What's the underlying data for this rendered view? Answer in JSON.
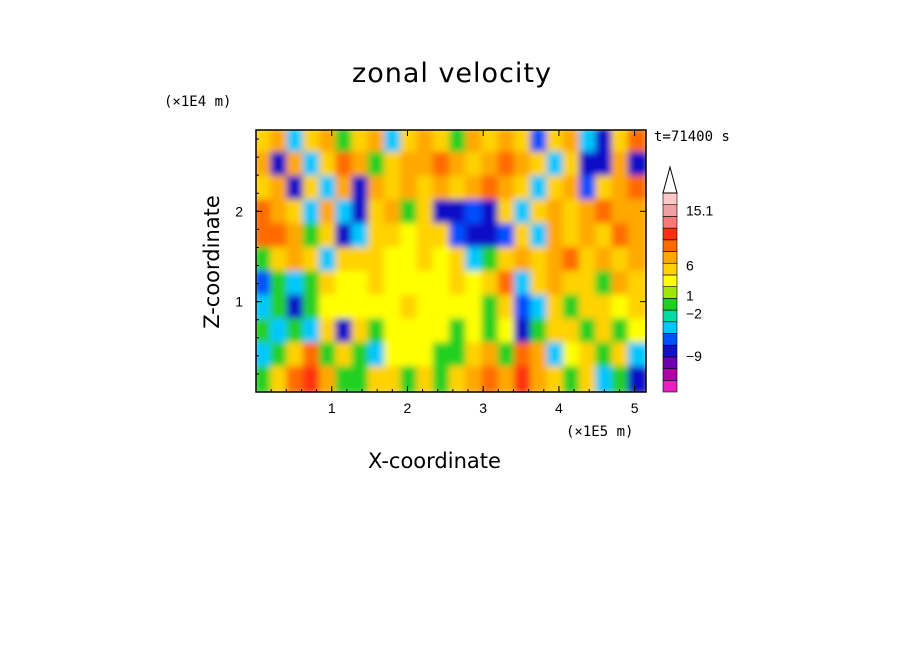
{
  "chart_data": {
    "type": "heatmap",
    "title": "zonal velocity",
    "xlabel": "X-coordinate",
    "ylabel": "Z-coordinate",
    "x_scale_label": "(×1E5 m)",
    "z_scale_label": "(×1E4 m)",
    "time_label": "t=71400 s",
    "xlim": [
      0,
      5.15
    ],
    "ylim": [
      0,
      2.9
    ],
    "x_ticks": [
      1,
      2,
      3,
      4,
      5
    ],
    "x_tick_labels": [
      "1",
      "2",
      "3",
      "4",
      "5"
    ],
    "y_ticks": [
      1,
      2
    ],
    "y_tick_labels": [
      "1",
      "2"
    ],
    "colorbar": {
      "labels": [
        {
          "text": "15.1",
          "value": 15.1
        },
        {
          "text": "6",
          "value": 6
        },
        {
          "text": "1",
          "value": 1
        },
        {
          "text": "−2",
          "value": -2
        },
        {
          "text": "−9",
          "value": -9
        }
      ],
      "colors": [
        "#e81fc0",
        "#b000a8",
        "#6e00b0",
        "#1010c8",
        "#0050ff",
        "#00c8ff",
        "#00dca0",
        "#20d020",
        "#a0e600",
        "#ffff00",
        "#ffd200",
        "#ffa800",
        "#ff6a00",
        "#ff3010",
        "#ff7878",
        "#f0a0a0",
        "#ffc8c8"
      ],
      "extend": "max"
    },
    "field": [
      [
        "#ffd200",
        "#ffa800",
        "#00c8ff",
        "#ffd200",
        "#ffa800",
        "#20d020",
        "#ffd200",
        "#ffa800",
        "#00c8ff",
        "#ffd200",
        "#ffa800",
        "#ffd200",
        "#20d020",
        "#ffa800",
        "#ffd200",
        "#ffa800",
        "#ffd200",
        "#0050ff",
        "#ffd200",
        "#ffa800",
        "#00c8ff",
        "#1010c8",
        "#ffd200",
        "#ff6a00"
      ],
      [
        "#ffa800",
        "#1010c8",
        "#ffa800",
        "#00c8ff",
        "#ffd200",
        "#ff6a00",
        "#ffa800",
        "#20d020",
        "#ffd200",
        "#ffa800",
        "#ffa800",
        "#ff6a00",
        "#ffa800",
        "#ffd200",
        "#ffa800",
        "#ff6a00",
        "#ffa800",
        "#ffd200",
        "#00c8ff",
        "#ffd200",
        "#1010c8",
        "#1010c8",
        "#ffa800",
        "#1010c8"
      ],
      [
        "#ffd200",
        "#ffa800",
        "#1010c8",
        "#ffd200",
        "#00c8ff",
        "#ffa800",
        "#1010c8",
        "#ffa800",
        "#ffd200",
        "#ffa800",
        "#ffd200",
        "#ffa800",
        "#ffd200",
        "#ffa800",
        "#ff6a00",
        "#ffa800",
        "#ffd200",
        "#00c8ff",
        "#ffd200",
        "#ffa800",
        "#0050ff",
        "#ffd200",
        "#ffa800",
        "#ff6a00"
      ],
      [
        "#ff6a00",
        "#ffa800",
        "#ffd200",
        "#00c8ff",
        "#ffa800",
        "#00c8ff",
        "#1010c8",
        "#ffd200",
        "#ffa800",
        "#20d020",
        "#ffd200",
        "#1010c8",
        "#1010c8",
        "#0050ff",
        "#1010c8",
        "#ffd200",
        "#00c8ff",
        "#ffd200",
        "#ffa800",
        "#ffd200",
        "#ffa800",
        "#ff6a00",
        "#ffa800",
        "#ffa800"
      ],
      [
        "#ff6a00",
        "#ff6a00",
        "#ffa800",
        "#20d020",
        "#ffd200",
        "#1010c8",
        "#00c8ff",
        "#ffd200",
        "#ffd200",
        "#ffff00",
        "#ffd200",
        "#ffd200",
        "#0050ff",
        "#1010c8",
        "#1010c8",
        "#0050ff",
        "#ffd200",
        "#00c8ff",
        "#ffa800",
        "#ffd200",
        "#ffa800",
        "#ffd200",
        "#ff6a00",
        "#ffa800"
      ],
      [
        "#20d020",
        "#ffd200",
        "#ffa800",
        "#ffd200",
        "#00c8ff",
        "#ffd200",
        "#ffd200",
        "#ffd200",
        "#ffff00",
        "#ffff00",
        "#ffd200",
        "#ffff00",
        "#ffd200",
        "#00c8ff",
        "#20d020",
        "#ffd200",
        "#ffa800",
        "#ffd200",
        "#ffa800",
        "#ff6a00",
        "#ffd200",
        "#ffa800",
        "#ffd200",
        "#ffa800"
      ],
      [
        "#0050ff",
        "#20d020",
        "#00c8ff",
        "#20d020",
        "#ffd200",
        "#ffff00",
        "#ffff00",
        "#ffd200",
        "#ffff00",
        "#ffff00",
        "#ffff00",
        "#ffff00",
        "#ffd200",
        "#ffff00",
        "#ffd200",
        "#ff6a00",
        "#00c8ff",
        "#ffd200",
        "#ffa800",
        "#ffd200",
        "#ffd200",
        "#20d020",
        "#ffa800",
        "#ffd200"
      ],
      [
        "#00c8ff",
        "#20d020",
        "#1010c8",
        "#20d020",
        "#ffff00",
        "#ffff00",
        "#ffff00",
        "#ffff00",
        "#ffff00",
        "#ffd200",
        "#ffff00",
        "#ffff00",
        "#ffff00",
        "#ffff00",
        "#20d020",
        "#ffd200",
        "#0050ff",
        "#00c8ff",
        "#ffd200",
        "#20d020",
        "#ffd200",
        "#ffd200",
        "#ffff00",
        "#ffd200"
      ],
      [
        "#20d020",
        "#00c8ff",
        "#20d020",
        "#00c8ff",
        "#ffd200",
        "#1010c8",
        "#ffd200",
        "#20d020",
        "#ffff00",
        "#ffff00",
        "#ffff00",
        "#ffff00",
        "#20d020",
        "#ffff00",
        "#20d020",
        "#ffff00",
        "#1010c8",
        "#20d020",
        "#ffd200",
        "#ffd200",
        "#20d020",
        "#ffd200",
        "#20d020",
        "#ffff00"
      ],
      [
        "#00c8ff",
        "#20d020",
        "#ffd200",
        "#ff6a00",
        "#20d020",
        "#ffd200",
        "#20d020",
        "#00c8ff",
        "#ffff00",
        "#ffff00",
        "#ffff00",
        "#20d020",
        "#20d020",
        "#ffd200",
        "#ffa800",
        "#20d020",
        "#ff6a00",
        "#ffa800",
        "#00c8ff",
        "#ffff00",
        "#ffd200",
        "#20d020",
        "#ffd200",
        "#00c8ff"
      ],
      [
        "#20d020",
        "#ffd200",
        "#ff6a00",
        "#ff3010",
        "#ffa800",
        "#20d020",
        "#20d020",
        "#ffd200",
        "#ffd200",
        "#20d020",
        "#ffd200",
        "#20d020",
        "#ffd200",
        "#ffa800",
        "#ff6a00",
        "#ffa800",
        "#ff3010",
        "#ffa800",
        "#ffd200",
        "#20d020",
        "#ffd200",
        "#00c8ff",
        "#20d020",
        "#1010c8"
      ]
    ]
  }
}
